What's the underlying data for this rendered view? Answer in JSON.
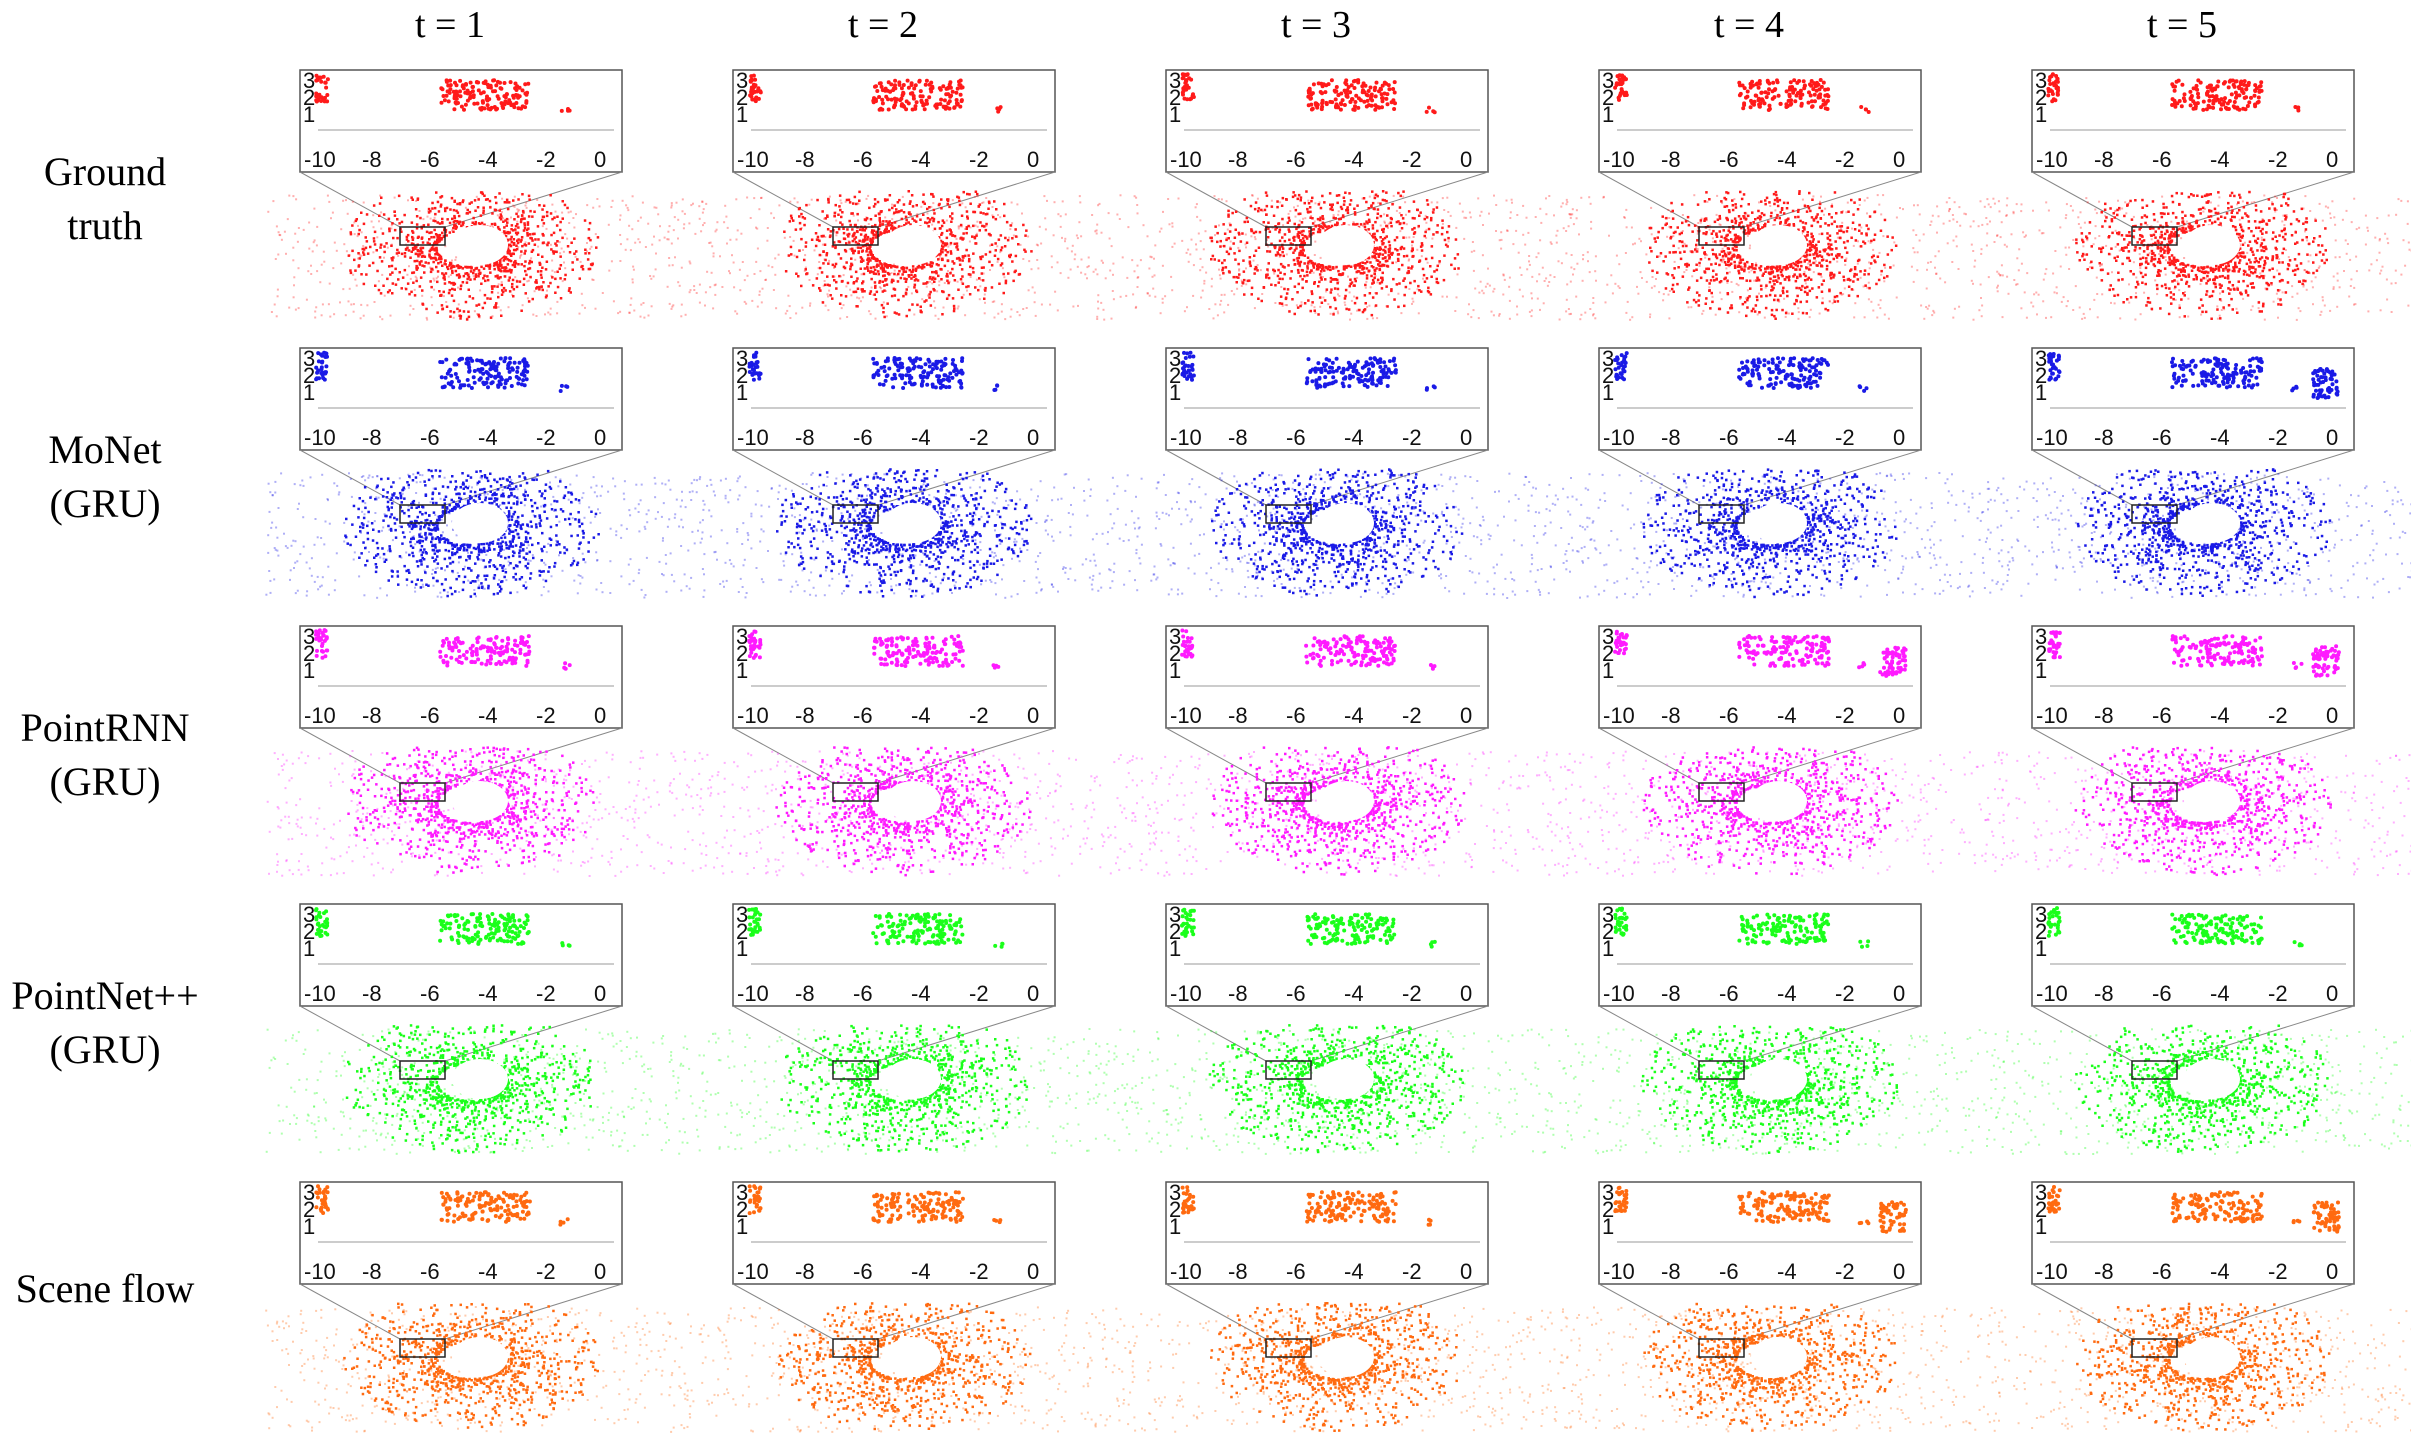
{
  "figure": {
    "columns": [
      "t = 1",
      "t = 2",
      "t = 3",
      "t = 4",
      "t = 5"
    ],
    "rows": [
      {
        "label_lines": [
          "Ground",
          "truth"
        ],
        "color": "#ff1a1a"
      },
      {
        "label_lines": [
          "MoNet",
          "(GRU)"
        ],
        "color": "#1a1ae6"
      },
      {
        "label_lines": [
          "PointRNN",
          "(GRU)"
        ],
        "color": "#ff1aff"
      },
      {
        "label_lines": [
          "PointNet++",
          "(GRU)"
        ],
        "color": "#1aff1a"
      },
      {
        "label_lines": [
          "Scene flow"
        ],
        "color": "#ff6a10"
      }
    ],
    "inset": {
      "x_ticks": [
        "-10",
        "-8",
        "-6",
        "-4",
        "-2",
        "0"
      ],
      "y_ticks": [
        "3",
        "2",
        "1"
      ]
    }
  }
}
